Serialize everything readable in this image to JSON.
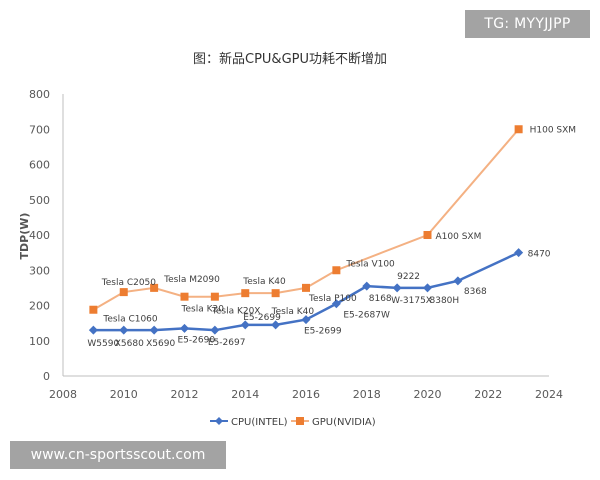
{
  "overlay": {
    "tg_label": "TG: MYYJJPP",
    "site_label": "www.cn-sportsscout.com"
  },
  "chart_data": {
    "type": "line",
    "title": "图：新品CPU&GPU功耗不断增加",
    "xlabel": "",
    "ylabel": "TDP(W)",
    "xlim": [
      2008,
      2024
    ],
    "ylim": [
      0,
      800
    ],
    "xticks": [
      2008,
      2010,
      2012,
      2014,
      2016,
      2018,
      2020,
      2022,
      2024
    ],
    "yticks": [
      0,
      100,
      200,
      300,
      400,
      500,
      600,
      700,
      800
    ],
    "grid": false,
    "legend_position": "bottom",
    "colors": {
      "cpu": "#4472c4",
      "gpu": "#ed7d31",
      "gpu_line": "#f4b183"
    },
    "series": [
      {
        "name": "CPU(INTEL)",
        "marker": "diamond",
        "x": [
          2009,
          2010,
          2011,
          2012,
          2013,
          2014,
          2015,
          2016,
          2017,
          2018,
          2019,
          2020,
          2021,
          2023
        ],
        "values": [
          130,
          130,
          130,
          135,
          130,
          145,
          145,
          160,
          205,
          255,
          250,
          250,
          270,
          350
        ],
        "labels": [
          "W5590",
          "X5680",
          "X5690",
          "E5-2690",
          "E5-2697",
          "E5-2699",
          "",
          "E5-2699",
          "E5-2687W",
          "8168",
          "W-3175X",
          "8380H",
          "8368",
          "8470"
        ]
      },
      {
        "name": "GPU(NVIDIA)",
        "marker": "square",
        "x": [
          2009,
          2010,
          2011,
          2012,
          2013,
          2014,
          2015,
          2016,
          2017,
          2020,
          2023
        ],
        "values": [
          188,
          238,
          250,
          225,
          225,
          235,
          235,
          250,
          300,
          400,
          700
        ],
        "labels": [
          "Tesla C1060",
          "Tesla C2050",
          "Tesla M2090",
          "Tesla K20",
          "Tesla K20X",
          "Tesla K40",
          "Tesla K40",
          "Tesla P100",
          "Tesla V100",
          "A100 SXM",
          "H100 SXM"
        ]
      }
    ],
    "extra_annotations": [
      {
        "text": "9222",
        "near": "CPU 2019"
      }
    ]
  }
}
